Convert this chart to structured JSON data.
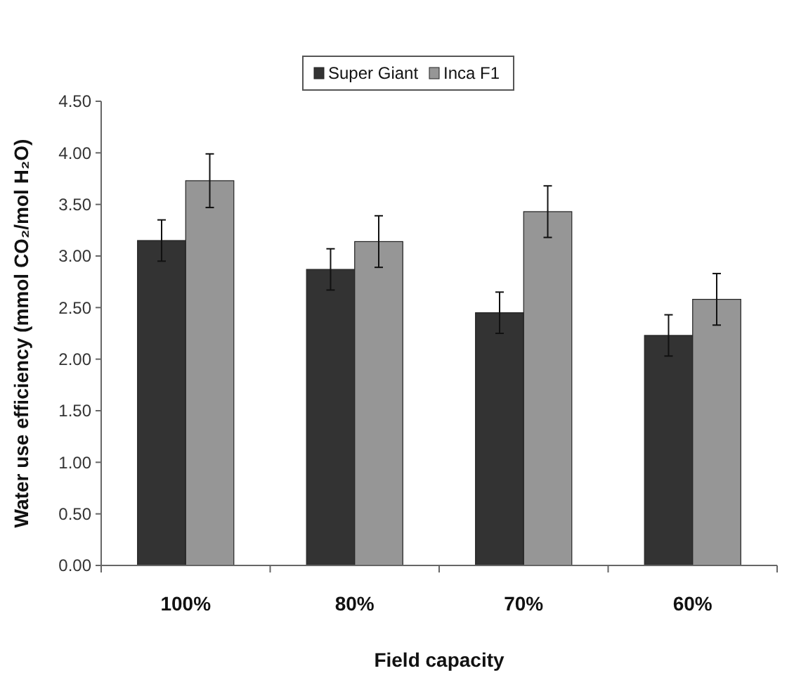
{
  "chart_data": {
    "type": "bar",
    "xlabel": "Field capacity",
    "ylabel": "Water use efficiency (mmol CO₂/mol H₂O)",
    "categories": [
      "100%",
      "80%",
      "70%",
      "60%"
    ],
    "series": [
      {
        "name": "Super Giant",
        "color": "#333333",
        "values": [
          3.15,
          2.87,
          2.45,
          2.23
        ],
        "errors": [
          0.2,
          0.2,
          0.2,
          0.2
        ]
      },
      {
        "name": "Inca F1",
        "color": "#969696",
        "values": [
          3.73,
          3.14,
          3.43,
          2.58
        ],
        "errors": [
          0.26,
          0.25,
          0.25,
          0.25
        ]
      }
    ],
    "ylim": [
      0,
      4.5
    ],
    "yticks": [
      {
        "value": 0,
        "label": "0.00"
      },
      {
        "value": 0.5,
        "label": "0.50"
      },
      {
        "value": 1,
        "label": "1.00"
      },
      {
        "value": 1.5,
        "label": "1.50"
      },
      {
        "value": 2,
        "label": "2.00"
      },
      {
        "value": 2.5,
        "label": "2.50"
      },
      {
        "value": 3,
        "label": "3.00"
      },
      {
        "value": 3.5,
        "label": "3.50"
      },
      {
        "value": 4,
        "label": "4.00"
      },
      {
        "value": 4.5,
        "label": "4.50"
      }
    ],
    "grid": false,
    "legend": "top"
  }
}
